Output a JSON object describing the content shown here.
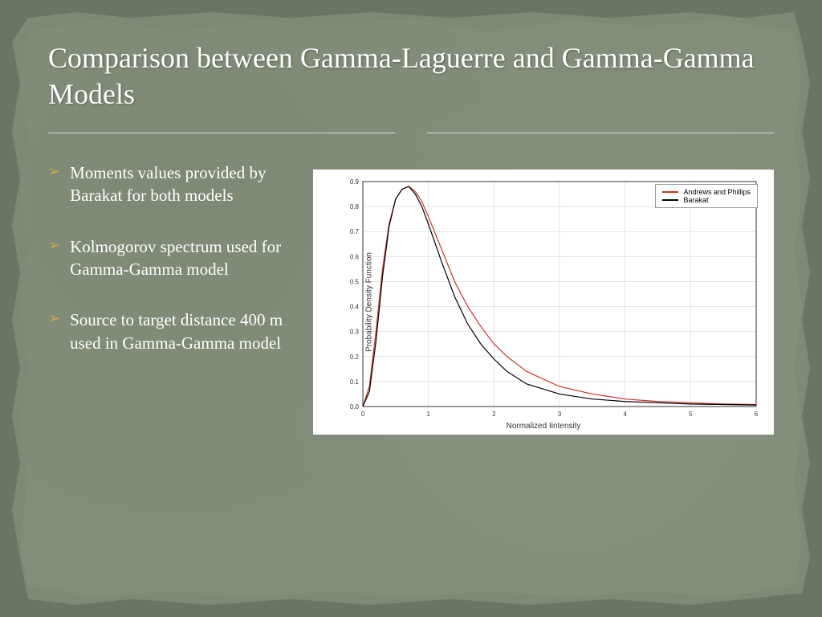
{
  "title": "Comparison between Gamma-Laguerre and Gamma-Gamma Models",
  "bullets": [
    "Moments values provided by Barakat for both models",
    "Kolmogorov spectrum used for Gamma-Gamma model",
    "Source to target distance 400 m used in Gamma-Gamma model"
  ],
  "chart": {
    "type": "line",
    "xlabel": "Normalized Iintensity",
    "ylabel": "Probability Density Function",
    "xlim": [
      0,
      6
    ],
    "ylim": [
      0,
      0.9
    ],
    "xtick_step": 1,
    "ytick_step": 0.1,
    "background_color": "#ffffff",
    "grid_color": "#cccccc",
    "axis_color": "#333333",
    "label_fontsize": 10,
    "tick_fontsize": 8,
    "series": [
      {
        "name": "Andrews and Phillips",
        "color": "#d43030",
        "line_width": 1.2,
        "x": [
          0,
          0.1,
          0.2,
          0.3,
          0.4,
          0.5,
          0.6,
          0.7,
          0.8,
          0.9,
          1.0,
          1.2,
          1.4,
          1.6,
          1.8,
          2.0,
          2.2,
          2.5,
          3.0,
          3.5,
          4.0,
          4.5,
          5.0,
          5.5,
          6.0
        ],
        "y": [
          0,
          0.08,
          0.3,
          0.55,
          0.73,
          0.83,
          0.87,
          0.88,
          0.86,
          0.82,
          0.76,
          0.63,
          0.5,
          0.4,
          0.32,
          0.25,
          0.2,
          0.14,
          0.08,
          0.05,
          0.03,
          0.02,
          0.015,
          0.01,
          0.008
        ]
      },
      {
        "name": "Barakat",
        "color": "#000000",
        "line_width": 1.2,
        "x": [
          0,
          0.1,
          0.2,
          0.3,
          0.4,
          0.5,
          0.6,
          0.7,
          0.8,
          0.9,
          1.0,
          1.2,
          1.4,
          1.6,
          1.8,
          2.0,
          2.2,
          2.5,
          3.0,
          3.5,
          4.0,
          4.5,
          5.0,
          5.5,
          6.0
        ],
        "y": [
          0,
          0.06,
          0.26,
          0.52,
          0.72,
          0.83,
          0.87,
          0.88,
          0.85,
          0.8,
          0.73,
          0.58,
          0.44,
          0.33,
          0.25,
          0.19,
          0.14,
          0.09,
          0.05,
          0.03,
          0.02,
          0.015,
          0.01,
          0.008,
          0.006
        ]
      }
    ],
    "legend_position": "top-right"
  },
  "colors": {
    "slide_bg": "#828e79",
    "frame_bg": "#7d8a75",
    "outer_bg": "#6b7563",
    "title_color": "#ffffff",
    "text_color": "#ffffff",
    "bullet_arrow": "#d4a84a"
  }
}
